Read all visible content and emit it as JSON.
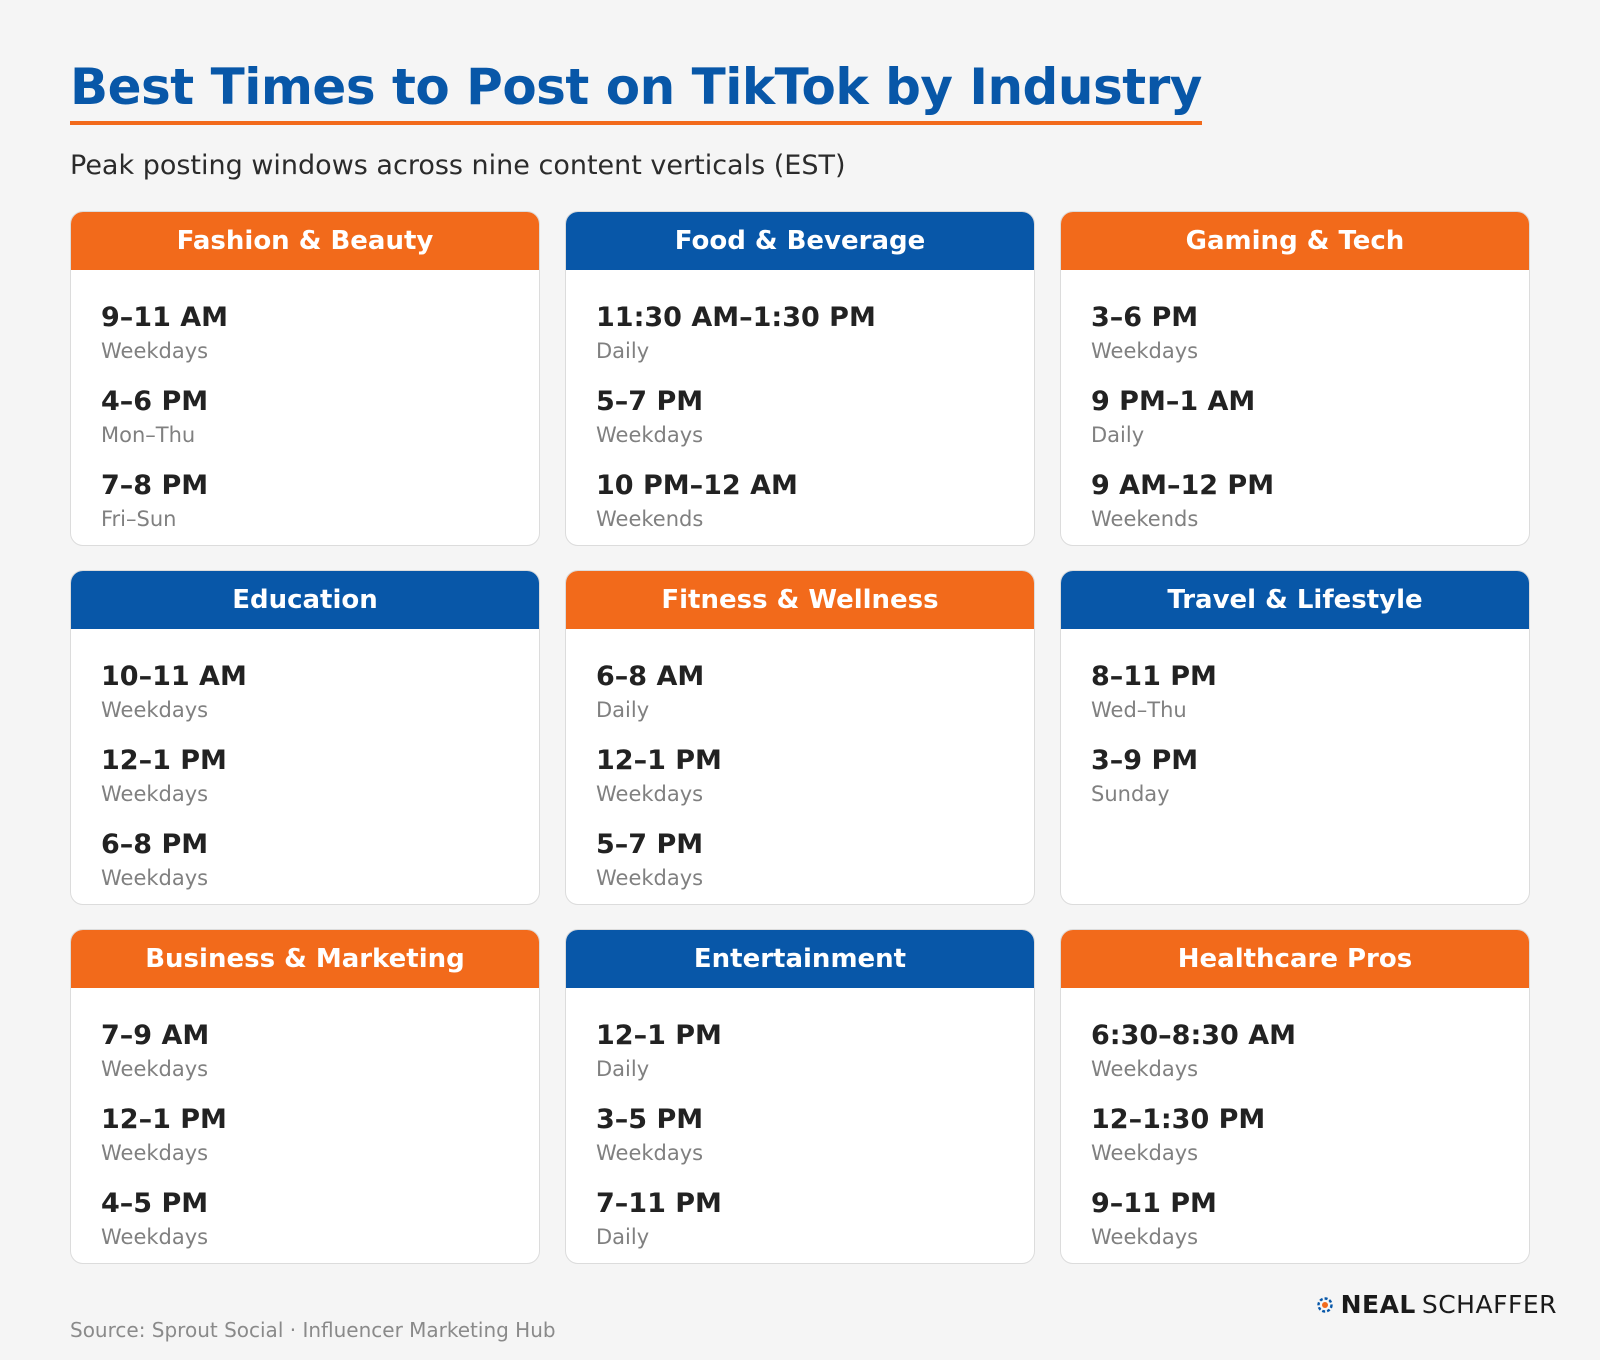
{
  "title": "Best Times to Post on TikTok by Industry",
  "subtitle": "Peak posting windows across nine content verticals (EST)",
  "colors": {
    "orange": "#f26a1b",
    "blue": "#0857a8"
  },
  "cards": [
    {
      "name": "Fashion & Beauty",
      "color": "orange",
      "slots": [
        {
          "time": "9–11 AM",
          "days": "Weekdays"
        },
        {
          "time": "4–6 PM",
          "days": "Mon–Thu"
        },
        {
          "time": "7–8 PM",
          "days": "Fri–Sun"
        }
      ]
    },
    {
      "name": "Food & Beverage",
      "color": "blue",
      "slots": [
        {
          "time": "11:30 AM–1:30 PM",
          "days": "Daily"
        },
        {
          "time": "5–7 PM",
          "days": "Weekdays"
        },
        {
          "time": "10 PM–12 AM",
          "days": "Weekends"
        }
      ]
    },
    {
      "name": "Gaming & Tech",
      "color": "orange",
      "slots": [
        {
          "time": "3–6 PM",
          "days": "Weekdays"
        },
        {
          "time": "9 PM–1 AM",
          "days": "Daily"
        },
        {
          "time": "9 AM–12 PM",
          "days": "Weekends"
        }
      ]
    },
    {
      "name": "Education",
      "color": "blue",
      "slots": [
        {
          "time": "10–11 AM",
          "days": "Weekdays"
        },
        {
          "time": "12–1 PM",
          "days": "Weekdays"
        },
        {
          "time": "6–8 PM",
          "days": "Weekdays"
        }
      ]
    },
    {
      "name": "Fitness & Wellness",
      "color": "orange",
      "slots": [
        {
          "time": "6–8 AM",
          "days": "Daily"
        },
        {
          "time": "12–1 PM",
          "days": "Weekdays"
        },
        {
          "time": "5–7 PM",
          "days": "Weekdays"
        }
      ]
    },
    {
      "name": "Travel & Lifestyle",
      "color": "blue",
      "slots": [
        {
          "time": "8–11 PM",
          "days": "Wed–Thu"
        },
        {
          "time": "3–9 PM",
          "days": "Sunday"
        }
      ]
    },
    {
      "name": "Business & Marketing",
      "color": "orange",
      "slots": [
        {
          "time": "7–9 AM",
          "days": "Weekdays"
        },
        {
          "time": "12–1 PM",
          "days": "Weekdays"
        },
        {
          "time": "4–5 PM",
          "days": "Weekdays"
        }
      ]
    },
    {
      "name": "Entertainment",
      "color": "blue",
      "slots": [
        {
          "time": "12–1 PM",
          "days": "Daily"
        },
        {
          "time": "3–5 PM",
          "days": "Weekdays"
        },
        {
          "time": "7–11 PM",
          "days": "Daily"
        }
      ]
    },
    {
      "name": "Healthcare Pros",
      "color": "orange",
      "slots": [
        {
          "time": "6:30–8:30 AM",
          "days": "Weekdays"
        },
        {
          "time": "12–1:30 PM",
          "days": "Weekdays"
        },
        {
          "time": "9–11 PM",
          "days": "Weekdays"
        }
      ]
    }
  ],
  "source": "Source: Sprout Social · Influencer Marketing Hub",
  "brand": {
    "word1": "NEAL",
    "word2": "SCHAFFER",
    "icon": "gear-ring-icon"
  }
}
